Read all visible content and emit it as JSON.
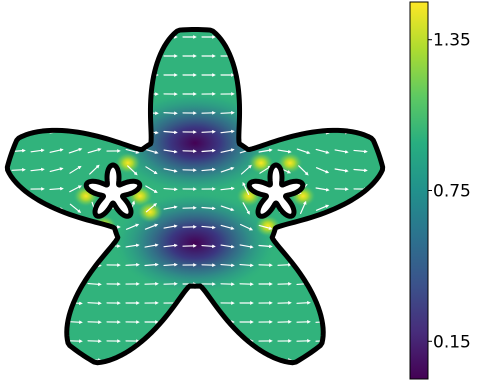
{
  "figure": {
    "kind": "vector-field-over-scalar-field",
    "region": "star-shaped-domain-with-two-star-holes",
    "colormap": "viridis",
    "colors": {
      "background": "#ffffff",
      "outline": "#000000",
      "arrows": "#ffffff",
      "field_base": "#31b37c",
      "low_spot": "#440154",
      "high_spot": "#fde725"
    }
  },
  "colorbar": {
    "range": [
      0.0,
      1.5
    ],
    "ticks": [
      {
        "value": 0.15,
        "label": "0.15"
      },
      {
        "value": 0.75,
        "label": "0.75"
      },
      {
        "value": 1.35,
        "label": "1.35"
      }
    ]
  }
}
